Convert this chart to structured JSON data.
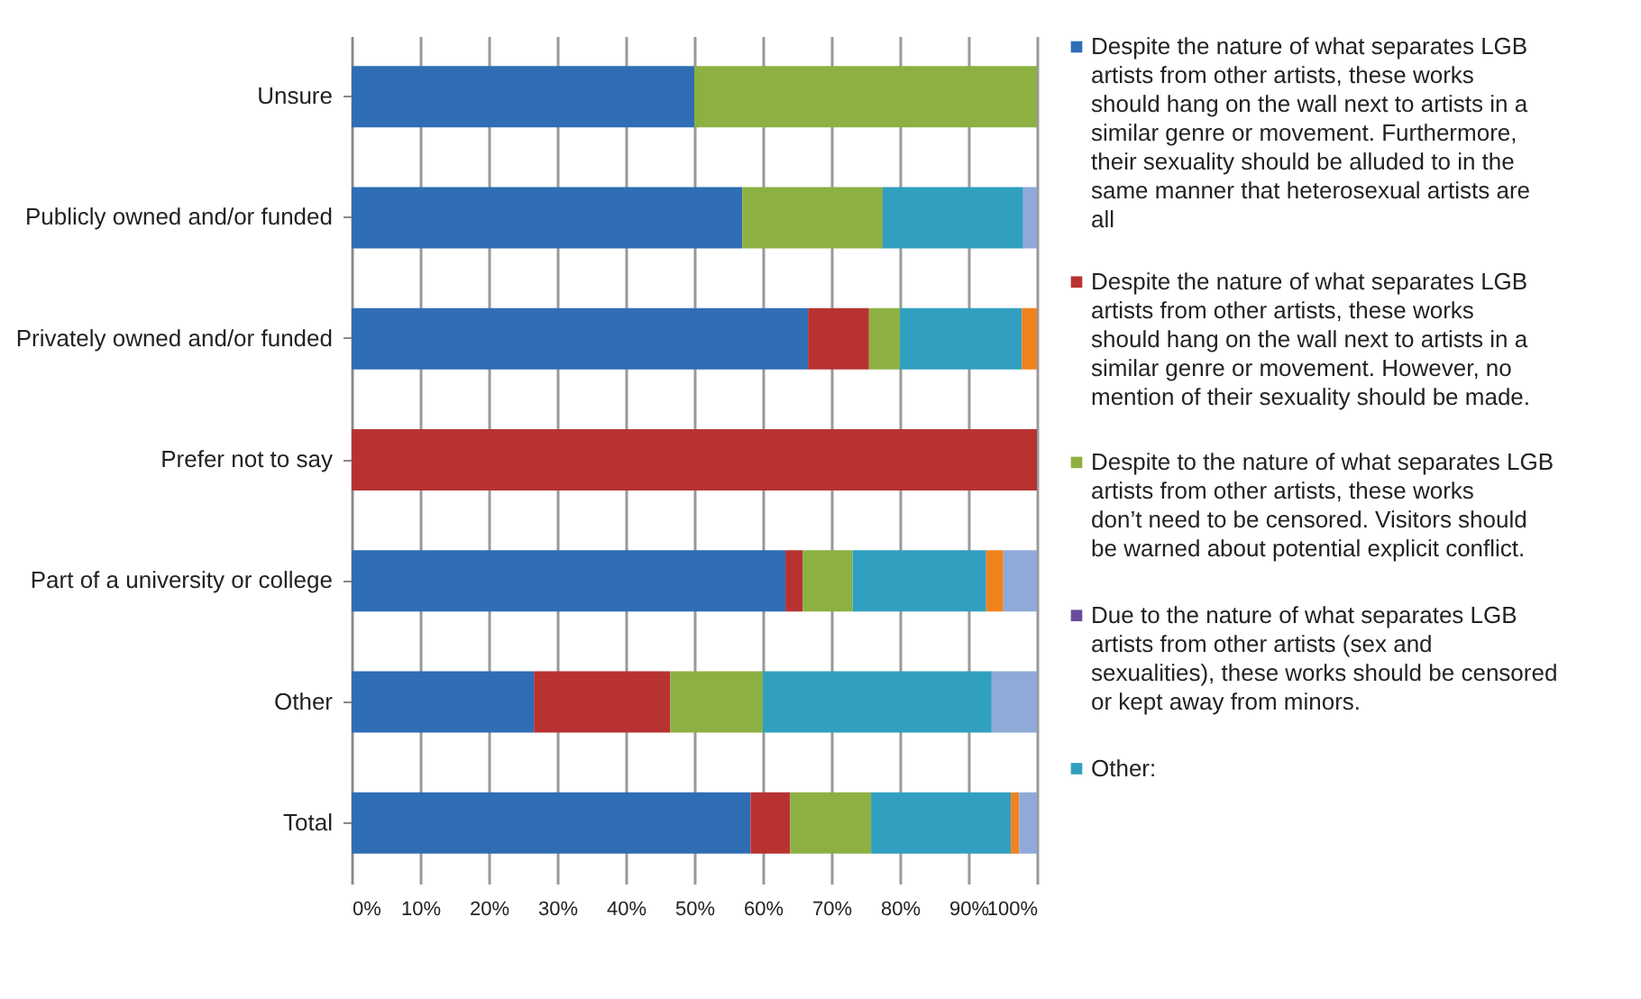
{
  "chart_data": {
    "type": "bar",
    "orientation": "horizontal",
    "stacked": true,
    "categories": [
      "Unsure",
      "Publicly owned and/or funded",
      "Privately owned and/or funded",
      "Prefer not to say",
      "Part of a university or college",
      "Other",
      "Total"
    ],
    "series": [
      {
        "name": "Despite the nature of what separates LGB artists from other artists, these works should hang on the wall next to artists in a similar genre or movement. Furthermore, their sexuality should be alluded to in the same manner that heterosexual artists are all",
        "color": "#2f6db5",
        "values": [
          50,
          57,
          66.6,
          0,
          63.3,
          26.6,
          58.2
        ]
      },
      {
        "name": "Despite the nature of what separates LGB artists from other artists, these works should hang on the wall next to artists in a similar genre or movement. However, no mention of their sexuality should be made.",
        "color": "#b83232",
        "values": [
          0,
          0,
          8.9,
          100,
          2.5,
          19.9,
          5.8
        ]
      },
      {
        "name": "Despite to the nature of what separates LGB artists from other artists, these works don’t need to be censored.  Visitors should be warned about potential explicit conflict.",
        "color": "#8db043",
        "values": [
          50,
          20.5,
          4.5,
          0,
          7.3,
          13.5,
          11.8
        ]
      },
      {
        "name": "Due to the nature of what separates LGB artists from other artists (sex and sexualities), these works should be censored or kept away from minors.",
        "color": "#6a4c9c",
        "values": [
          0,
          0,
          0,
          0,
          0,
          0,
          0
        ]
      },
      {
        "name": "Other:",
        "color": "#31a0c0",
        "values": [
          0,
          20.5,
          17.8,
          0,
          19.5,
          33.4,
          20.4
        ]
      },
      {
        "color": "#f0821e",
        "values": [
          0,
          0,
          2.2,
          0,
          2.5,
          0,
          1.2
        ]
      },
      {
        "color": "#8faad8",
        "values": [
          0,
          2,
          0,
          0,
          4.9,
          6.6,
          2.6
        ]
      }
    ],
    "xlim": [
      0,
      100
    ],
    "xticks": [
      {
        "value": 0,
        "label": "0%"
      },
      {
        "value": 10,
        "label": "10%"
      },
      {
        "value": 20,
        "label": "20%"
      },
      {
        "value": 30,
        "label": "30%"
      },
      {
        "value": 40,
        "label": "40%"
      },
      {
        "value": 50,
        "label": "50%"
      },
      {
        "value": 60,
        "label": "60%"
      },
      {
        "value": 70,
        "label": "70%"
      },
      {
        "value": 80,
        "label": "80%"
      },
      {
        "value": 90,
        "label": "90%"
      },
      {
        "value": 100,
        "label": "100%"
      }
    ],
    "grid": "x",
    "legend": "right"
  }
}
